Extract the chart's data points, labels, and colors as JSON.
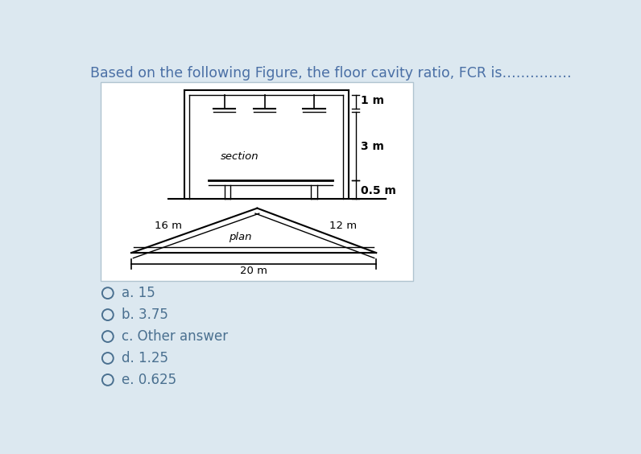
{
  "title": "Based on the following Figure, the floor cavity ratio, FCR is……………",
  "bg_color": "#dce8f0",
  "box_bg": "#ffffff",
  "line_color": "#000000",
  "text_color": "#4a6fa5",
  "choices_color": "#4a7090",
  "choices": [
    "a. 15",
    "b. 3.75",
    "c. Other answer",
    "d. 1.25",
    "e. 0.625"
  ],
  "section_label": "section",
  "plan_label": "plan",
  "dim_1m": "1 m",
  "dim_3m": "3 m",
  "dim_05m": "0.5 m",
  "dim_16m": "16 m",
  "dim_12m": "12 m",
  "dim_20m": "20 m"
}
